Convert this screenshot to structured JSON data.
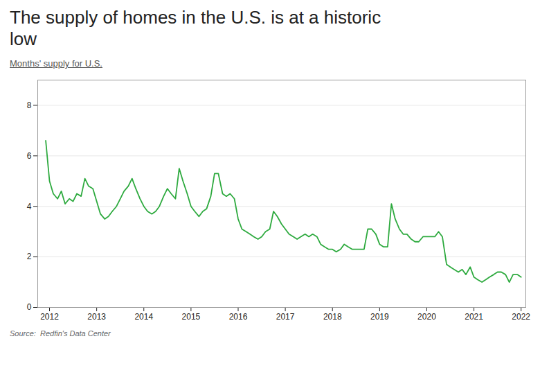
{
  "chart_data": {
    "type": "line",
    "title": "The supply of homes in the U.S. is at a historic\nlow",
    "subtitle": "Months' supply for U.S.",
    "source": "Source:  Redfin's Data Center",
    "color": "#2eaa3f",
    "xlim": [
      2011.75,
      2022.1
    ],
    "xticks": [
      2012,
      2013,
      2014,
      2015,
      2016,
      2017,
      2018,
      2019,
      2020,
      2021,
      2022
    ],
    "ylim": [
      0,
      9
    ],
    "yticks": [
      0,
      2,
      4,
      6,
      8
    ],
    "grid": true,
    "x": [
      2011.92,
      2012.0,
      2012.08,
      2012.17,
      2012.25,
      2012.33,
      2012.42,
      2012.5,
      2012.58,
      2012.67,
      2012.75,
      2012.83,
      2012.92,
      2013.0,
      2013.08,
      2013.17,
      2013.25,
      2013.33,
      2013.42,
      2013.5,
      2013.58,
      2013.67,
      2013.75,
      2013.83,
      2013.92,
      2014.0,
      2014.08,
      2014.17,
      2014.25,
      2014.33,
      2014.42,
      2014.5,
      2014.58,
      2014.67,
      2014.75,
      2014.83,
      2014.92,
      2015.0,
      2015.08,
      2015.17,
      2015.25,
      2015.33,
      2015.42,
      2015.5,
      2015.58,
      2015.67,
      2015.75,
      2015.83,
      2015.92,
      2016.0,
      2016.08,
      2016.17,
      2016.25,
      2016.33,
      2016.42,
      2016.5,
      2016.58,
      2016.67,
      2016.75,
      2016.83,
      2016.92,
      2017.0,
      2017.08,
      2017.17,
      2017.25,
      2017.33,
      2017.42,
      2017.5,
      2017.58,
      2017.67,
      2017.75,
      2017.83,
      2017.92,
      2018.0,
      2018.08,
      2018.17,
      2018.25,
      2018.33,
      2018.42,
      2018.5,
      2018.58,
      2018.67,
      2018.75,
      2018.83,
      2018.92,
      2019.0,
      2019.08,
      2019.17,
      2019.25,
      2019.33,
      2019.42,
      2019.5,
      2019.58,
      2019.67,
      2019.75,
      2019.83,
      2019.92,
      2020.0,
      2020.08,
      2020.17,
      2020.25,
      2020.33,
      2020.42,
      2020.5,
      2020.58,
      2020.67,
      2020.75,
      2020.83,
      2020.92,
      2021.0,
      2021.08,
      2021.17,
      2021.25,
      2021.33,
      2021.42,
      2021.5,
      2021.58,
      2021.67,
      2021.75,
      2021.83,
      2021.92,
      2022.0
    ],
    "values": [
      6.6,
      5.0,
      4.5,
      4.3,
      4.6,
      4.1,
      4.3,
      4.2,
      4.5,
      4.4,
      5.1,
      4.8,
      4.7,
      4.2,
      3.7,
      3.5,
      3.6,
      3.8,
      4.0,
      4.3,
      4.6,
      4.8,
      5.1,
      4.7,
      4.3,
      4.0,
      3.8,
      3.7,
      3.8,
      4.0,
      4.4,
      4.7,
      4.5,
      4.3,
      5.5,
      5.0,
      4.5,
      4.0,
      3.8,
      3.6,
      3.8,
      3.9,
      4.4,
      5.3,
      5.3,
      4.5,
      4.4,
      4.5,
      4.3,
      3.5,
      3.1,
      3.0,
      2.9,
      2.8,
      2.7,
      2.8,
      3.0,
      3.1,
      3.8,
      3.6,
      3.3,
      3.1,
      2.9,
      2.8,
      2.7,
      2.8,
      2.9,
      2.8,
      2.9,
      2.8,
      2.5,
      2.4,
      2.3,
      2.3,
      2.2,
      2.3,
      2.5,
      2.4,
      2.3,
      2.3,
      2.3,
      2.3,
      3.1,
      3.1,
      2.9,
      2.5,
      2.4,
      2.4,
      4.1,
      3.5,
      3.1,
      2.9,
      2.9,
      2.7,
      2.6,
      2.6,
      2.8,
      2.8,
      2.8,
      2.8,
      3.0,
      2.8,
      1.7,
      1.6,
      1.5,
      1.4,
      1.5,
      1.3,
      1.6,
      1.2,
      1.1,
      1.0,
      1.1,
      1.2,
      1.3,
      1.4,
      1.4,
      1.3,
      1.0,
      1.3,
      1.3,
      1.2
    ]
  }
}
